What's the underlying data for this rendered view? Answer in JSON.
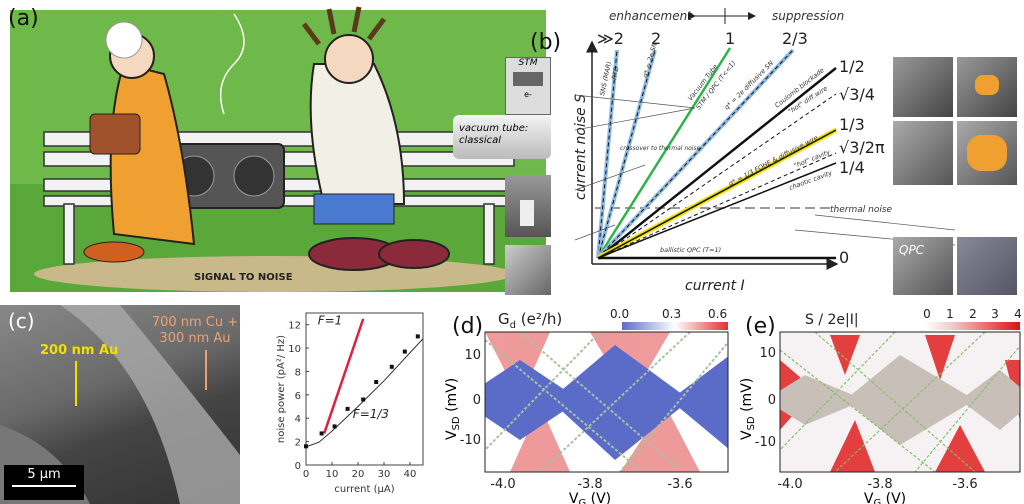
{
  "panels": {
    "a": {
      "label": "(a)",
      "caption": "SIGNAL TO NOISE"
    },
    "b": {
      "label": "(b)",
      "top_left": "enhancement",
      "top_right": "suppression",
      "ylabel": "current noise S",
      "xlabel": "current I",
      "fano_top": [
        "≫2",
        "2",
        "1",
        "2/3"
      ],
      "fano_right": [
        "1/2",
        "√3/4",
        "1/3",
        "√3/2π",
        "1/4",
        "0"
      ],
      "line_labels": [
        "SNS (MAR)",
        "RTD",
        "q* = 2e SN",
        "Vacuum Tube",
        "STM / QPC (T<<1)",
        "q* = 2e diffusive SN",
        "Coulomb blockade",
        "\"hot\" diff.wire",
        "q* = 1/3 FQHE & diffusive wire",
        "\"hot\" cavity",
        "chaotic cavity",
        "ballistic QPC (T=1)"
      ],
      "crossover": "crossover to thermal noise",
      "thermal": "thermal noise",
      "thumbs": {
        "stm": "STM",
        "electron": "e-",
        "vacuum": "vacuum tube: classical",
        "qpc": "QPC"
      }
    },
    "c": {
      "label": "(c)",
      "au": "200 nm Au",
      "cu": "700 nm Cu + 300 nm Au",
      "scale": "5 µm"
    },
    "d": {
      "label": "(d)",
      "title": "G",
      "title_sub": "d",
      "title_unit": " (e²/h)",
      "cbar_ticks": [
        "0.0",
        "0.3",
        "0.6"
      ],
      "ylabel": "V",
      "ylabel_sub": "SD",
      "ylabel_unit": " (mV)",
      "xlabel": "V",
      "xlabel_sub": "G",
      "xlabel_unit": " (V)",
      "xticks": [
        "-4.0",
        "-3.8",
        "-3.6"
      ],
      "yticks": [
        "10",
        "0",
        "-10"
      ]
    },
    "e": {
      "label": "(e)",
      "title": "S / 2e|I|",
      "cbar_ticks": [
        "0",
        "1",
        "2",
        "3",
        "4"
      ],
      "ylabel": "V",
      "ylabel_sub": "SD",
      "ylabel_unit": " (mV)",
      "xlabel": "V",
      "xlabel_sub": "G",
      "xlabel_unit": " (V)",
      "xticks": [
        "-4.0",
        "-3.8",
        "-3.6"
      ],
      "yticks": [
        "10",
        "0",
        "-10"
      ]
    }
  },
  "colors": {
    "cartoon_bg": "#6fb84a",
    "green_line": "#2db34a",
    "yellow": "#f2e200",
    "blue_dash": "#8cb8e0",
    "red": "#e02040",
    "au_label": "#f0e000",
    "cu_label": "#f0a070",
    "heat_blue": "#5a6cc8",
    "heat_red": "#e03030",
    "heat_grey": "#c8c0b8"
  },
  "chart_data": {
    "type": "scatter",
    "xlabel": "current (µA)",
    "ylabel": "noise power (pA²/ Hz)",
    "xlim": [
      0,
      45
    ],
    "ylim": [
      0,
      13
    ],
    "xticks": [
      0,
      10,
      20,
      30,
      40
    ],
    "yticks": [
      0,
      2,
      4,
      6,
      8,
      10,
      12
    ],
    "points": [
      [
        0,
        1.6
      ],
      [
        6,
        2.7
      ],
      [
        11,
        3.3
      ],
      [
        16,
        4.8
      ],
      [
        22,
        5.6
      ],
      [
        27,
        7.1
      ],
      [
        33,
        8.4
      ],
      [
        38,
        9.7
      ],
      [
        43,
        11.0
      ]
    ],
    "series": [
      {
        "name": "F=1",
        "x": [
          7,
          22
        ],
        "y": [
          2.7,
          12.5
        ]
      },
      {
        "name": "F=1/3",
        "x": [
          0,
          5,
          10,
          20,
          30,
          40,
          45
        ],
        "y": [
          1.55,
          1.95,
          2.9,
          5.0,
          7.2,
          9.6,
          10.8
        ]
      }
    ]
  }
}
